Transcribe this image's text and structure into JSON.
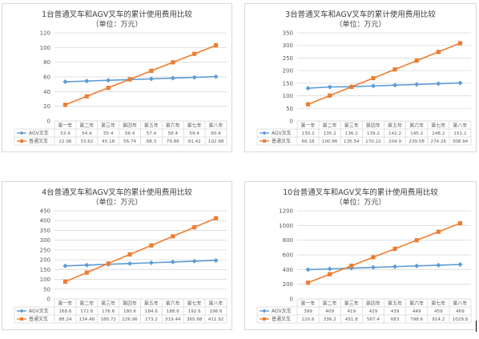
{
  "colors": {
    "agv": "#5b9bd5",
    "standard": "#ed7d31",
    "grid": "#d9d9d9",
    "axis_text": "#595959",
    "title": "#404040"
  },
  "chart_data": [
    {
      "type": "line",
      "title": "1台普通叉车和AGV叉车的累计使用费用比较",
      "subtitle": "（单位：万元）",
      "categories": [
        "第一年",
        "第二年",
        "第三年",
        "第四年",
        "第五年",
        "第六年",
        "第七年",
        "第八年"
      ],
      "ylim": [
        0,
        120
      ],
      "yticks": [
        0,
        20,
        40,
        60,
        80,
        100,
        120
      ],
      "series": [
        {
          "name": "AGV叉车",
          "marker": "diamond",
          "values": [
            53.4,
            54.4,
            55.4,
            56.4,
            57.4,
            58.4,
            59.4,
            60.4
          ],
          "labels": [
            "53.4",
            "54.4",
            "55.4",
            "56.4",
            "57.4",
            "58.4",
            "59.4",
            "60.4"
          ]
        },
        {
          "name": "普通叉车",
          "marker": "square",
          "values": [
            22.06,
            33.62,
            45.18,
            56.74,
            68.3,
            79.86,
            91.42,
            102.98
          ],
          "labels": [
            "22.06",
            "33.62",
            "45.18",
            "56.74",
            "68.3",
            "79.86",
            "91.42",
            "102.98"
          ]
        }
      ],
      "grid": true,
      "legend": "table"
    },
    {
      "type": "line",
      "title": "3台普通叉车和AGV叉车的累计使用费用比较",
      "subtitle": "（单位：万元）",
      "categories": [
        "第一年",
        "第二年",
        "第三年",
        "第四年",
        "第五年",
        "第六年",
        "第七年",
        "第八年"
      ],
      "ylim": [
        0,
        350
      ],
      "yticks": [
        0,
        50,
        100,
        150,
        200,
        250,
        300,
        350
      ],
      "series": [
        {
          "name": "AGV叉车",
          "marker": "diamond",
          "values": [
            130.2,
            135.2,
            136.2,
            139.2,
            142.2,
            145.2,
            148.2,
            151.2
          ],
          "labels": [
            "130.2",
            "135.2",
            "136.2",
            "139.2",
            "142.2",
            "145.2",
            "148.2",
            "151.2"
          ]
        },
        {
          "name": "普通叉车",
          "marker": "square",
          "values": [
            66.18,
            100.86,
            135.54,
            170.22,
            204.9,
            239.58,
            274.26,
            308.94
          ],
          "labels": [
            "66.18",
            "100.86",
            "135.54",
            "170.22",
            "204.9",
            "239.58",
            "274.26",
            "308.94"
          ]
        }
      ],
      "grid": true,
      "legend": "table"
    },
    {
      "type": "line",
      "title": "4台普通叉车和AGV叉车的累计使用费用比较",
      "subtitle": "（单位：万元）",
      "categories": [
        "第一年",
        "第二年",
        "第三年",
        "第四年",
        "第五年",
        "第六年",
        "第七年",
        "第八年"
      ],
      "ylim": [
        0,
        450
      ],
      "yticks": [
        0,
        50,
        100,
        150,
        200,
        250,
        300,
        350,
        400,
        450
      ],
      "series": [
        {
          "name": "AGV叉车",
          "marker": "diamond",
          "values": [
            168.6,
            172.6,
            176.6,
            180.6,
            184.6,
            188.6,
            192.6,
            196.6
          ],
          "labels": [
            "168.6",
            "172.6",
            "176.6",
            "180.6",
            "184.6",
            "188.6",
            "192.6",
            "196.6"
          ]
        },
        {
          "name": "普通叉车",
          "marker": "square",
          "values": [
            88.24,
            134.48,
            180.72,
            226.96,
            273.2,
            319.44,
            365.68,
            411.92
          ],
          "labels": [
            "88.24",
            "134.48",
            "180.72",
            "226.96",
            "273.2",
            "319.44",
            "365.68",
            "411.92"
          ]
        }
      ],
      "grid": true,
      "legend": "table"
    },
    {
      "type": "line",
      "title": "10台普通叉车和AGV叉车的累计使用费用比较",
      "subtitle": "（单位：万元）",
      "categories": [
        "第一年",
        "第二年",
        "第三年",
        "第四年",
        "第五年",
        "第六年",
        "第七年",
        "第八年"
      ],
      "ylim": [
        0,
        1200
      ],
      "yticks": [
        0,
        200,
        400,
        600,
        800,
        1000,
        1200
      ],
      "series": [
        {
          "name": "AGV叉车",
          "marker": "diamond",
          "values": [
            399,
            409,
            419,
            429,
            439,
            449,
            459,
            469
          ],
          "labels": [
            "399",
            "409",
            "419",
            "429",
            "439",
            "449",
            "459",
            "469"
          ]
        },
        {
          "name": "普通叉车",
          "marker": "square",
          "values": [
            220.6,
            336.2,
            451.8,
            567.4,
            683,
            798.6,
            914.2,
            1029.8
          ],
          "labels": [
            "220.6",
            "336.2",
            "451.8",
            "567.4",
            "683",
            "798.6",
            "914.2",
            "1029.8"
          ]
        }
      ],
      "grid": true,
      "legend": "table"
    }
  ]
}
